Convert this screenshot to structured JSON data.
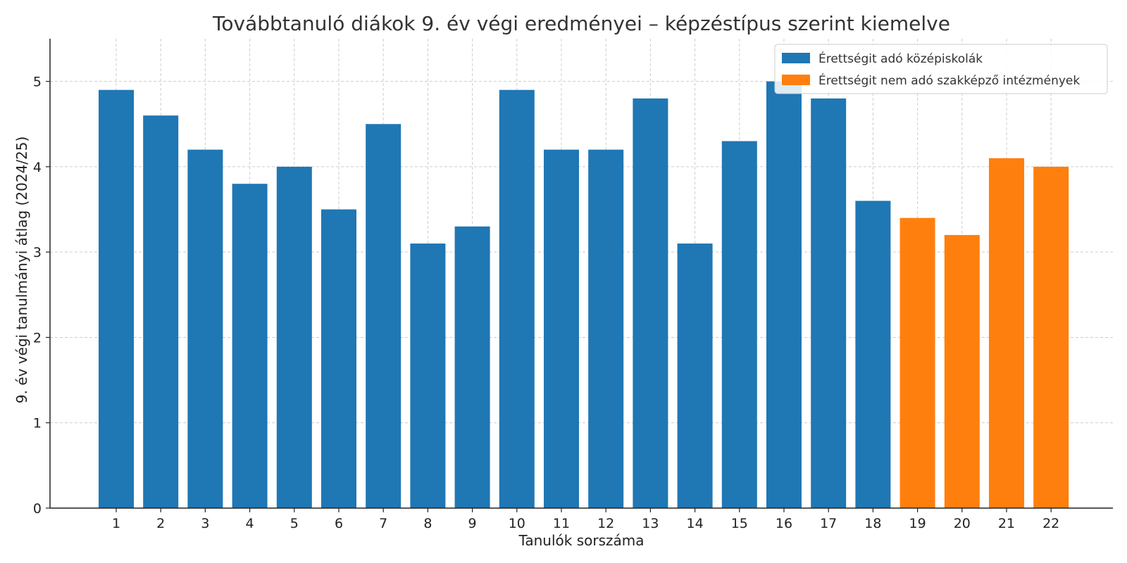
{
  "chart_data": {
    "type": "bar",
    "title": "Továbbtanuló diákok 9. év végi eredményei – képzéstípus szerint kiemelve",
    "xlabel": "Tanulók sorszáma",
    "ylabel": "9. év végi tanulmányi átlag (2024/25)",
    "ylim": [
      0,
      5.5
    ],
    "yticks": [
      0,
      1,
      2,
      3,
      4,
      5
    ],
    "grid": true,
    "legend_position": "top-right",
    "categories": [
      "1",
      "2",
      "3",
      "4",
      "5",
      "6",
      "7",
      "8",
      "9",
      "10",
      "11",
      "12",
      "13",
      "14",
      "15",
      "16",
      "17",
      "18",
      "19",
      "20",
      "21",
      "22"
    ],
    "values": [
      4.9,
      4.6,
      4.2,
      3.8,
      4.0,
      3.5,
      4.5,
      3.1,
      3.3,
      4.9,
      4.2,
      4.2,
      4.8,
      3.1,
      4.3,
      5.0,
      4.8,
      3.6,
      3.4,
      3.2,
      4.1,
      4.0
    ],
    "groups": [
      0,
      0,
      0,
      0,
      0,
      0,
      0,
      0,
      0,
      0,
      0,
      0,
      0,
      0,
      0,
      0,
      0,
      0,
      1,
      1,
      1,
      1
    ],
    "series": [
      {
        "name": "Érettségit adó középiskolák",
        "color": "#1f77b4"
      },
      {
        "name": "Érettségit nem adó szakképző intézmények",
        "color": "#ff7f0e"
      }
    ]
  }
}
